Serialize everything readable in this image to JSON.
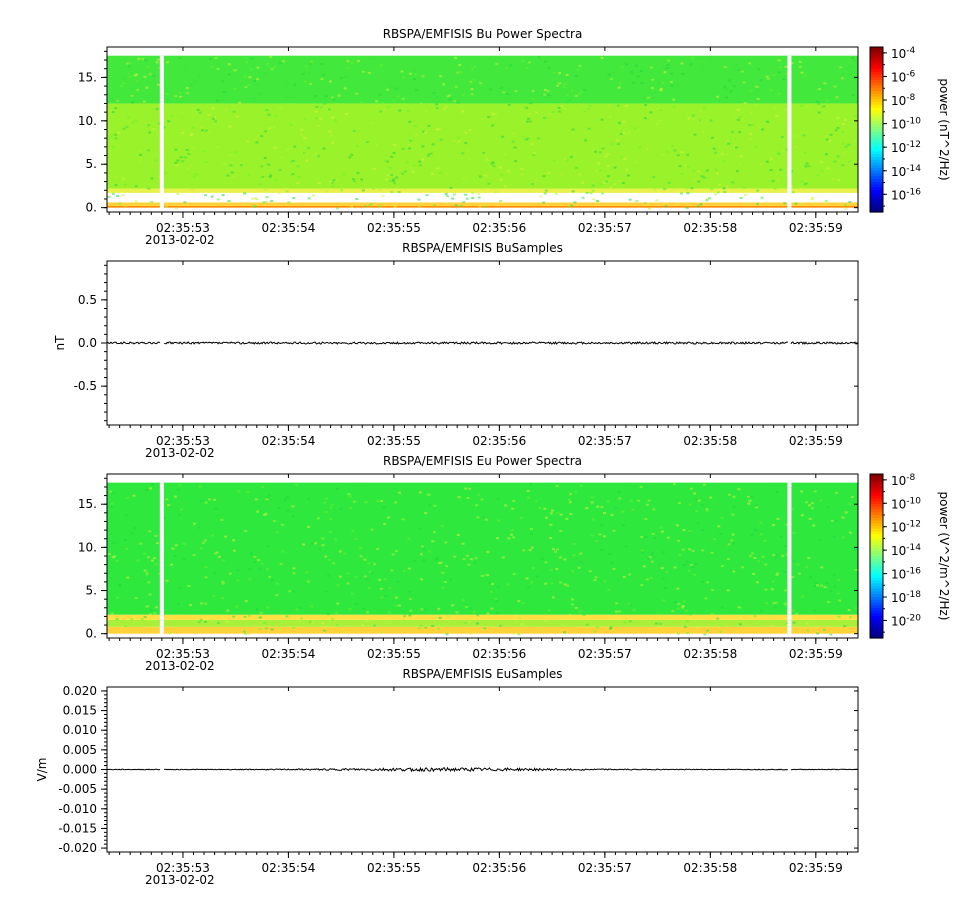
{
  "chart_data": [
    {
      "type": "heatmap",
      "title": "RBSPA/EMFISIS  Bu Power Spectra",
      "ylabel": "",
      "ylim": [
        -0.5,
        18.5
      ],
      "yticks": [
        0,
        5,
        10,
        15
      ],
      "ytick_labels": [
        "0.",
        "5.",
        "10.",
        "15."
      ],
      "z_label": "power (nT^2/Hz)",
      "z_scale": "log",
      "z_ticks": [
        "10^-4",
        "10^-6",
        "10^-8",
        "10^-10",
        "10^-12",
        "10^-14",
        "10^-16"
      ],
      "z_range_exponent": [
        -17.5,
        -3.5
      ],
      "data_yrange": [
        0,
        17.5
      ],
      "bands": [
        {
          "y0": 0,
          "y1": 0.2,
          "color": "#ff8a00"
        },
        {
          "y0": 0.2,
          "y1": 0.6,
          "color": "#ffd23a"
        },
        {
          "y0": 1.7,
          "y1": 2.2,
          "color": "#e8f04a"
        },
        {
          "y0": 2.2,
          "y1": 12,
          "color": "#9af22a"
        },
        {
          "y0": 12,
          "y1": 17.5,
          "color": "#42e83c"
        }
      ],
      "gaps_x": [
        52.8,
        58.75
      ]
    },
    {
      "type": "line",
      "title": "RBSPA/EMFISIS  BuSamples",
      "ylabel": "nT",
      "ylim": [
        -0.95,
        0.95
      ],
      "yticks": [
        -0.5,
        0,
        0.5
      ],
      "ytick_labels": [
        "-0.5",
        "0.0",
        "0.5"
      ],
      "series": [
        {
          "values_mean": 0.0,
          "noise_amp": 0.012,
          "color": "#000000"
        }
      ],
      "gaps_x": [
        52.8,
        58.75
      ]
    },
    {
      "type": "heatmap",
      "title": "RBSPA/EMFISIS  Eu Power Spectra",
      "ylabel": "",
      "ylim": [
        -0.5,
        18.5
      ],
      "yticks": [
        0,
        5,
        10,
        15
      ],
      "ytick_labels": [
        "0.",
        "5.",
        "10.",
        "15."
      ],
      "z_label": "power (V^2/m^2/Hz)",
      "z_scale": "log",
      "z_ticks": [
        "10^-8",
        "10^-10",
        "10^-12",
        "10^-14",
        "10^-16",
        "10^-18",
        "10^-20"
      ],
      "z_range_exponent": [
        -21.5,
        -7.5
      ],
      "data_yrange": [
        0,
        17.5
      ],
      "bands": [
        {
          "y0": 0,
          "y1": 0.8,
          "color": "#ffd23a"
        },
        {
          "y0": 0.8,
          "y1": 1.6,
          "color": "#a8f03a"
        },
        {
          "y0": 1.6,
          "y1": 2.2,
          "color": "#ffe040"
        },
        {
          "y0": 2.2,
          "y1": 17.5,
          "color": "#2ee83e"
        }
      ],
      "gaps_x": [
        52.8,
        58.75
      ]
    },
    {
      "type": "line",
      "title": "RBSPA/EMFISIS  EuSamples",
      "ylabel": "V/m",
      "ylim": [
        -0.021,
        0.021
      ],
      "yticks": [
        -0.02,
        -0.015,
        -0.01,
        -0.005,
        0,
        0.005,
        0.01,
        0.015,
        0.02
      ],
      "ytick_labels": [
        "-0.020",
        "-0.015",
        "-0.010",
        "-0.005",
        "0.000",
        "0.005",
        "0.010",
        "0.015",
        "0.020"
      ],
      "series": [
        {
          "values_mean": 0.0,
          "noise_amp": 0.0003,
          "color": "#000000"
        }
      ],
      "gaps_x": [
        52.8,
        58.75
      ]
    }
  ],
  "x_axis": {
    "range": [
      52.28,
      59.4
    ],
    "tick_values": [
      53,
      54,
      55,
      56,
      57,
      58,
      59
    ],
    "tick_labels": [
      "02:35:53",
      "02:35:54",
      "02:35:55",
      "02:35:56",
      "02:35:57",
      "02:35:58",
      "02:35:59"
    ],
    "date_label": "2013-02-02"
  },
  "colors": {
    "frame": "#000000",
    "gap": "#ffffff"
  }
}
